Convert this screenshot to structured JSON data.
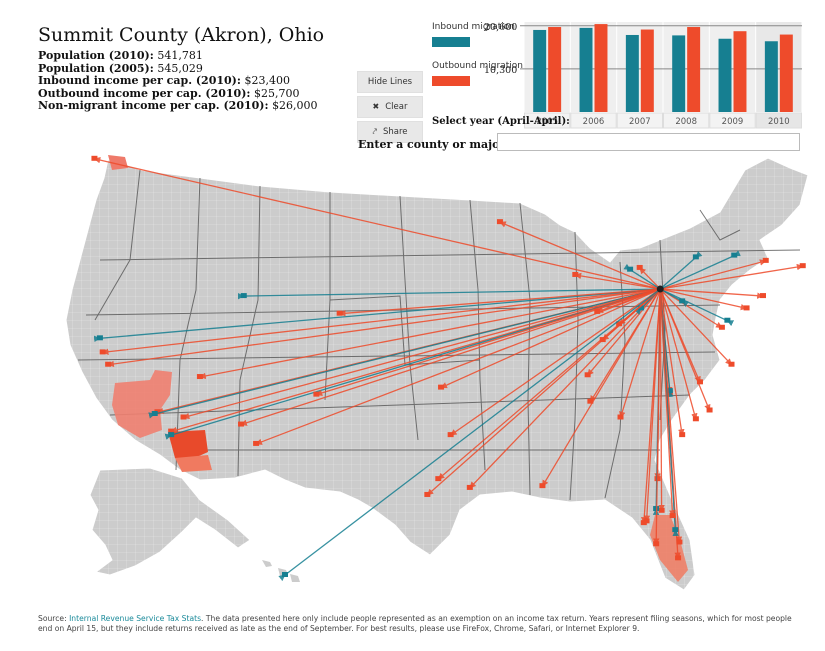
{
  "header": {
    "title": "Summit County (Akron), Ohio",
    "stats": [
      {
        "label": "Population (2010):",
        "value": "541,781"
      },
      {
        "label": "Population (2005):",
        "value": "545,029"
      },
      {
        "label": "Inbound income per cap. (2010):",
        "value": "$23,400"
      },
      {
        "label": "Outbound income per cap. (2010):",
        "value": "$25,700"
      },
      {
        "label": "Non-migrant income per cap. (2010):",
        "value": "$26,000"
      }
    ]
  },
  "controls": {
    "hide_lines": "Hide Lines",
    "clear": "Clear",
    "share": "Share"
  },
  "legend": {
    "inbound_label": "Inbound migration",
    "outbound_label": "Outbound migration",
    "inbound_color": "#167f91",
    "outbound_color": "#ee4b2b"
  },
  "chart_data": {
    "type": "bar",
    "categories": [
      "2005",
      "2006",
      "2007",
      "2008",
      "2009",
      "2010"
    ],
    "series": [
      {
        "name": "Inbound migration",
        "values": [
          19600,
          20100,
          18400,
          18300,
          17500,
          16900
        ]
      },
      {
        "name": "Outbound migration",
        "values": [
          20300,
          21000,
          19700,
          20300,
          19300,
          18500
        ]
      }
    ],
    "yticks": [
      "20,600",
      "10,300"
    ],
    "ytick_values": [
      20600,
      10300
    ],
    "ylim": [
      0,
      21500
    ],
    "xlabel": "Select year (April-April):",
    "selected": "2010"
  },
  "search": {
    "label": "Enter a county or major city:",
    "value": "",
    "placeholder": ""
  },
  "map": {
    "origin": [
      -81.5,
      41.1
    ],
    "land_color": "#cccccc",
    "flows": [
      {
        "dir": "out",
        "to": [
          -122.8,
          48.5
        ]
      },
      {
        "dir": "out",
        "to": [
          -122.2,
          37.5
        ]
      },
      {
        "dir": "in",
        "to": [
          -122.4,
          38.3
        ]
      },
      {
        "dir": "out",
        "to": [
          -121.8,
          36.8
        ]
      },
      {
        "dir": "out",
        "to": [
          -118.2,
          34.1
        ]
      },
      {
        "dir": "in",
        "to": [
          -118.4,
          34.0
        ]
      },
      {
        "dir": "out",
        "to": [
          -117.2,
          33.0
        ]
      },
      {
        "dir": "in",
        "to": [
          -117.2,
          32.8
        ]
      },
      {
        "dir": "out",
        "to": [
          -116.3,
          33.8
        ]
      },
      {
        "dir": "out",
        "to": [
          -112.1,
          33.4
        ]
      },
      {
        "dir": "out",
        "to": [
          -111.0,
          32.3
        ]
      },
      {
        "dir": "out",
        "to": [
          -115.1,
          36.1
        ]
      },
      {
        "dir": "in",
        "to": [
          -111.9,
          40.7
        ]
      },
      {
        "dir": "out",
        "to": [
          -106.6,
          35.1
        ]
      },
      {
        "dir": "out",
        "to": [
          -104.9,
          39.7
        ]
      },
      {
        "dir": "out",
        "to": [
          -97.5,
          35.5
        ]
      },
      {
        "dir": "out",
        "to": [
          -96.8,
          32.8
        ]
      },
      {
        "dir": "out",
        "to": [
          -97.7,
          30.3
        ]
      },
      {
        "dir": "out",
        "to": [
          -95.4,
          29.8
        ]
      },
      {
        "dir": "out",
        "to": [
          -98.5,
          29.4
        ]
      },
      {
        "dir": "out",
        "to": [
          -93.2,
          44.9
        ]
      },
      {
        "dir": "out",
        "to": [
          -90.1,
          29.9
        ]
      },
      {
        "dir": "out",
        "to": [
          -86.8,
          36.2
        ]
      },
      {
        "dir": "out",
        "to": [
          -84.4,
          33.8
        ]
      },
      {
        "dir": "out",
        "to": [
          -86.6,
          34.7
        ]
      },
      {
        "dir": "out",
        "to": [
          -80.8,
          35.2
        ]
      },
      {
        "dir": "in",
        "to": [
          -80.8,
          35.3
        ]
      },
      {
        "dir": "out",
        "to": [
          -79.9,
          32.8
        ]
      },
      {
        "dir": "out",
        "to": [
          -78.9,
          33.7
        ]
      },
      {
        "dir": "out",
        "to": [
          -77.9,
          34.2
        ]
      },
      {
        "dir": "out",
        "to": [
          -78.6,
          35.8
        ]
      },
      {
        "dir": "out",
        "to": [
          -76.3,
          36.8
        ]
      },
      {
        "dir": "out",
        "to": [
          -77.0,
          38.9
        ]
      },
      {
        "dir": "in",
        "to": [
          -76.6,
          39.3
        ]
      },
      {
        "dir": "out",
        "to": [
          -75.2,
          40.0
        ]
      },
      {
        "dir": "out",
        "to": [
          -74.0,
          40.7
        ]
      },
      {
        "dir": "out",
        "to": [
          -71.1,
          42.4
        ]
      },
      {
        "dir": "out",
        "to": [
          -73.8,
          42.7
        ]
      },
      {
        "dir": "in",
        "to": [
          -76.1,
          43.0
        ]
      },
      {
        "dir": "in",
        "to": [
          -78.9,
          42.9
        ]
      },
      {
        "dir": "out",
        "to": [
          -87.7,
          41.9
        ]
      },
      {
        "dir": "out",
        "to": [
          -83.0,
          42.3
        ]
      },
      {
        "dir": "in",
        "to": [
          -83.7,
          42.2
        ]
      },
      {
        "dir": "in",
        "to": [
          -82.9,
          40.0
        ]
      },
      {
        "dir": "out",
        "to": [
          -84.5,
          39.1
        ]
      },
      {
        "dir": "out",
        "to": [
          -86.1,
          39.8
        ]
      },
      {
        "dir": "out",
        "to": [
          -85.7,
          38.2
        ]
      },
      {
        "dir": "in",
        "to": [
          -79.9,
          40.4
        ]
      },
      {
        "dir": "out",
        "to": [
          -81.7,
          30.3
        ]
      },
      {
        "dir": "out",
        "to": [
          -81.4,
          28.5
        ]
      },
      {
        "dir": "in",
        "to": [
          -81.8,
          28.6
        ]
      },
      {
        "dir": "out",
        "to": [
          -82.5,
          27.9
        ]
      },
      {
        "dir": "out",
        "to": [
          -82.7,
          27.8
        ]
      },
      {
        "dir": "out",
        "to": [
          -81.8,
          26.6
        ]
      },
      {
        "dir": "out",
        "to": [
          -80.1,
          26.7
        ]
      },
      {
        "dir": "out",
        "to": [
          -80.2,
          25.8
        ]
      },
      {
        "dir": "in",
        "to": [
          -80.4,
          27.4
        ]
      },
      {
        "dir": "out",
        "to": [
          -80.6,
          28.2
        ]
      },
      {
        "dir": "in",
        "to": [
          -157.8,
          21.3
        ]
      }
    ]
  },
  "source": {
    "prefix": "Source: ",
    "link": "Internal Revenue Service Tax Stats",
    "text": ". The data presented here only include people represented as an exemption on an income tax return. Years represent filing seasons, which for most people end on April 15, but they include returns received as late as the end of September. For best results, please use FireFox, Chrome, Safari, or Internet Explorer 9."
  }
}
